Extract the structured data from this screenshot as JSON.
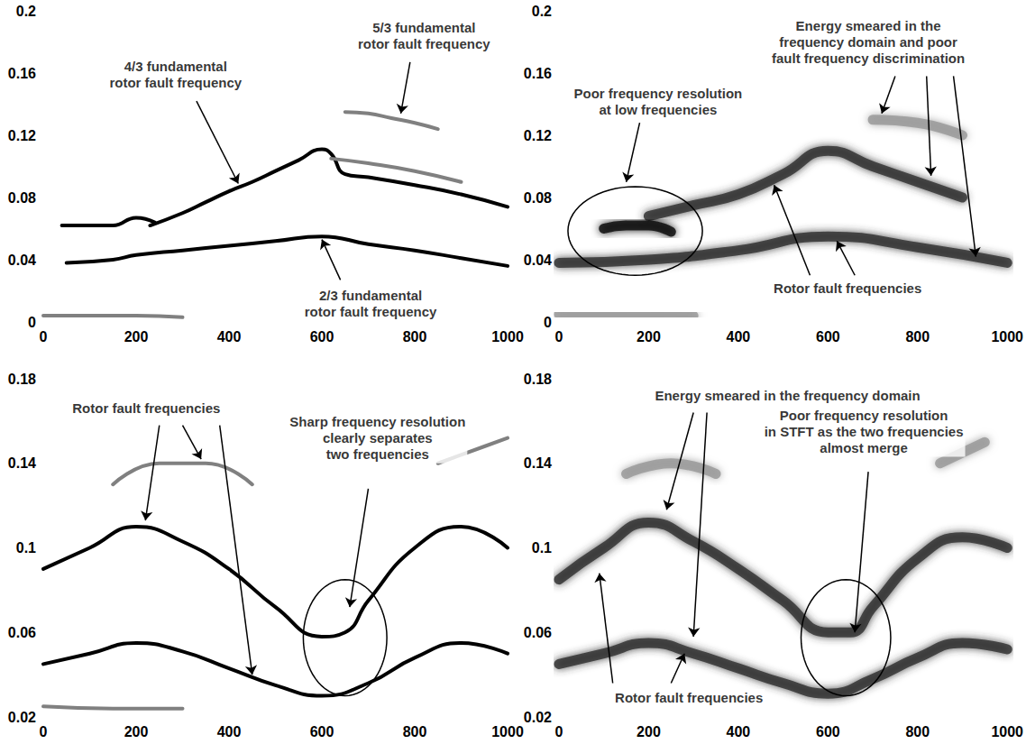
{
  "chart_data": [
    {
      "type": "line",
      "grid": false,
      "marker": "none",
      "line_style": "solid",
      "xlim": [
        0,
        1000
      ],
      "xticks": [
        0,
        200,
        400,
        600,
        800,
        1000
      ],
      "ylim": [
        0,
        0.2
      ],
      "yticks": [
        0,
        0.04,
        0.08,
        0.12,
        0.16,
        0.2
      ],
      "series": [
        {
          "color": "#000000",
          "x": [
            50,
            150,
            200,
            300,
            400,
            500,
            600,
            700,
            800,
            900,
            1000
          ],
          "values": [
            0.038,
            0.04,
            0.043,
            0.046,
            0.049,
            0.052,
            0.055,
            0.05,
            0.046,
            0.041,
            0.036
          ]
        },
        {
          "color": "#000000",
          "x": [
            230,
            300,
            350,
            400,
            450,
            500,
            550,
            600,
            620,
            650,
            700,
            800,
            900,
            1000
          ],
          "values": [
            0.062,
            0.07,
            0.077,
            0.084,
            0.09,
            0.097,
            0.104,
            0.111,
            0.108,
            0.095,
            0.093,
            0.088,
            0.082,
            0.074
          ]
        },
        {
          "color": "#000000",
          "x": [
            40,
            100,
            150,
            200,
            240
          ],
          "values": [
            0.062,
            0.062,
            0.062,
            0.067,
            0.064
          ]
        },
        {
          "color": "#808080",
          "x": [
            620,
            700,
            800,
            900
          ],
          "values": [
            0.105,
            0.102,
            0.097,
            0.09
          ]
        },
        {
          "color": "#808080",
          "x": [
            650,
            700,
            750,
            800,
            850
          ],
          "values": [
            0.135,
            0.134,
            0.131,
            0.128,
            0.124
          ]
        },
        {
          "color": "#808080",
          "x": [
            0,
            100,
            200,
            300
          ],
          "values": [
            0.004,
            0.004,
            0.004,
            0.003
          ]
        }
      ],
      "annotations": [
        {
          "text": "5/3 fundamental\nrotor fault frequency",
          "x": 820,
          "y": 0.184,
          "arrows": [
            [
              790,
              0.167,
              770,
              0.134
            ]
          ]
        },
        {
          "text": "4/3 fundamental\nrotor fault frequency",
          "x": 285,
          "y": 0.159,
          "arrows": [
            [
              330,
              0.142,
              420,
              0.089
            ]
          ]
        },
        {
          "text": "2/3 fundamental\nrotor fault frequency",
          "x": 705,
          "y": 0.012,
          "arrows": [
            [
              640,
              0.027,
              600,
              0.053
            ]
          ]
        }
      ]
    },
    {
      "type": "line",
      "grid": false,
      "marker": "none",
      "line_style": "smeared",
      "xlim": [
        0,
        1000
      ],
      "xticks": [
        0,
        200,
        400,
        600,
        800,
        1000
      ],
      "ylim": [
        0,
        0.2
      ],
      "yticks": [
        0,
        0.04,
        0.08,
        0.12,
        0.16,
        0.2
      ],
      "series": [
        {
          "color": "#333333",
          "x": [
            0,
            200,
            400,
            600,
            800,
            1000
          ],
          "values": [
            0.038,
            0.04,
            0.046,
            0.055,
            0.048,
            0.038
          ]
        },
        {
          "color": "#333333",
          "x": [
            200,
            300,
            400,
            500,
            600,
            700,
            800,
            900
          ],
          "values": [
            0.068,
            0.075,
            0.082,
            0.095,
            0.11,
            0.1,
            0.09,
            0.08
          ]
        },
        {
          "color": "#111111",
          "x": [
            100,
            150,
            200,
            250
          ],
          "values": [
            0.06,
            0.062,
            0.062,
            0.058
          ]
        },
        {
          "color": "#9a9a9a",
          "x": [
            700,
            800,
            900
          ],
          "values": [
            0.13,
            0.128,
            0.12
          ]
        },
        {
          "color": "#9a9a9a",
          "x": [
            0,
            150,
            300
          ],
          "values": [
            0.005,
            0.005,
            0.004
          ]
        }
      ],
      "annotations": [
        {
          "text": "Energy smeared in the\nfrequency domain and poor\nfault frequency discrimination",
          "x": 690,
          "y": 0.18,
          "arrows": [
            [
              750,
              0.158,
              720,
              0.134
            ],
            [
              820,
              0.158,
              830,
              0.094
            ],
            [
              880,
              0.158,
              930,
              0.042
            ]
          ]
        },
        {
          "text": "Poor frequency resolution\nat low frequencies",
          "x": 221,
          "y": 0.142,
          "arrows": [
            [
              180,
              0.128,
              150,
              0.09
            ]
          ]
        },
        {
          "text": "Rotor fault frequencies",
          "x": 644,
          "y": 0.022,
          "arrows": [
            [
              560,
              0.03,
              480,
              0.088
            ],
            [
              660,
              0.03,
              620,
              0.052
            ]
          ]
        }
      ],
      "circles": [
        [
          20,
          0.03,
          320,
          0.087
        ]
      ]
    },
    {
      "type": "line",
      "grid": false,
      "marker": "none",
      "line_style": "solid",
      "xlim": [
        0,
        1000
      ],
      "xticks": [
        0,
        200,
        400,
        600,
        800,
        1000
      ],
      "ylim": [
        0.02,
        0.18
      ],
      "yticks": [
        0.02,
        0.06,
        0.1,
        0.14,
        0.18
      ],
      "series": [
        {
          "color": "#000000",
          "x": [
            0,
            100,
            200,
            300,
            400,
            500,
            600,
            700,
            800,
            900,
            1000
          ],
          "values": [
            0.045,
            0.05,
            0.055,
            0.051,
            0.043,
            0.035,
            0.03,
            0.036,
            0.048,
            0.055,
            0.05
          ]
        },
        {
          "color": "#000000",
          "x": [
            0,
            100,
            200,
            300,
            400,
            500,
            600,
            650,
            700,
            800,
            900,
            1000
          ],
          "values": [
            0.09,
            0.1,
            0.11,
            0.103,
            0.09,
            0.072,
            0.058,
            0.06,
            0.075,
            0.1,
            0.11,
            0.1
          ]
        },
        {
          "color": "#808080",
          "x": [
            150,
            250,
            350,
            450
          ],
          "values": [
            0.13,
            0.14,
            0.14,
            0.13
          ]
        },
        {
          "color": "#808080",
          "x": [
            850,
            950,
            1000
          ],
          "values": [
            0.14,
            0.148,
            0.152
          ]
        },
        {
          "color": "#808080",
          "x": [
            0,
            150,
            300
          ],
          "values": [
            0.025,
            0.024,
            0.024
          ]
        }
      ],
      "annotations": [
        {
          "text": "Rotor fault frequencies",
          "x": 222,
          "y": 0.166,
          "arrows": [
            [
              300,
              0.158,
              340,
              0.142
            ],
            [
              250,
              0.158,
              220,
              0.113
            ],
            [
              380,
              0.158,
              450,
              0.04
            ]
          ]
        },
        {
          "text": "Sharp frequency resolution\nclearly separates\ntwo frequencies",
          "x": 720,
          "y": 0.152,
          "arrows": [
            [
              700,
              0.128,
              660,
              0.072
            ]
          ]
        }
      ],
      "circles": [
        [
          560,
          0.03,
          740,
          0.085
        ]
      ]
    },
    {
      "type": "line",
      "grid": false,
      "marker": "none",
      "line_style": "smeared",
      "xlim": [
        0,
        1000
      ],
      "xticks": [
        0,
        200,
        400,
        600,
        800,
        1000
      ],
      "ylim": [
        0.02,
        0.18
      ],
      "yticks": [
        0.02,
        0.06,
        0.1,
        0.14,
        0.18
      ],
      "series": [
        {
          "color": "#333333",
          "x": [
            0,
            100,
            200,
            300,
            400,
            500,
            600,
            700,
            800,
            900,
            1000
          ],
          "values": [
            0.045,
            0.05,
            0.055,
            0.05,
            0.043,
            0.036,
            0.031,
            0.038,
            0.048,
            0.055,
            0.052
          ]
        },
        {
          "color": "#333333",
          "x": [
            0,
            100,
            200,
            300,
            400,
            500,
            600,
            650,
            700,
            800,
            900,
            1000
          ],
          "values": [
            0.085,
            0.1,
            0.112,
            0.103,
            0.09,
            0.075,
            0.06,
            0.06,
            0.072,
            0.095,
            0.105,
            0.1
          ]
        },
        {
          "color": "#9a9a9a",
          "x": [
            150,
            250,
            350
          ],
          "values": [
            0.135,
            0.14,
            0.135
          ]
        },
        {
          "color": "#9a9a9a",
          "x": [
            850,
            950
          ],
          "values": [
            0.14,
            0.15
          ]
        }
      ],
      "annotations": [
        {
          "text": "Energy smeared in the frequency domain",
          "x": 510,
          "y": 0.172,
          "arrows": [
            [
              300,
              0.164,
              240,
              0.118
            ],
            [
              330,
              0.164,
              300,
              0.058
            ]
          ]
        },
        {
          "text": "Poor frequency resolution\nin STFT as the two frequencies\nalmost merge",
          "x": 680,
          "y": 0.155,
          "arrows": [
            [
              690,
              0.136,
              660,
              0.06
            ]
          ]
        },
        {
          "text": "Rotor fault frequencies",
          "x": 290,
          "y": 0.029,
          "arrows": [
            [
              120,
              0.036,
              90,
              0.088
            ],
            [
              250,
              0.036,
              280,
              0.05
            ]
          ]
        }
      ],
      "circles": [
        [
          540,
          0.03,
          740,
          0.085
        ]
      ]
    }
  ]
}
